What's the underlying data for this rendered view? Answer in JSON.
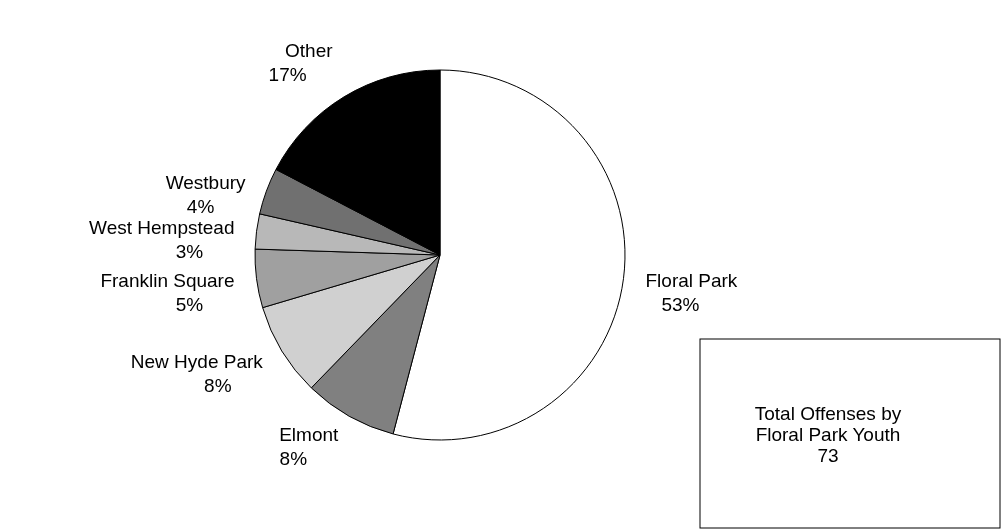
{
  "chart_data": {
    "type": "pie",
    "categories": [
      "Floral Park",
      "Elmont",
      "New Hyde Park",
      "Franklin Square",
      "West Hempstead",
      "Westbury",
      "Other"
    ],
    "values": [
      53,
      8,
      8,
      5,
      3,
      4,
      17
    ],
    "value_labels": [
      "53%",
      "8%",
      "8%",
      "5%",
      "3%",
      "4%",
      "17%"
    ],
    "colors": [
      "#ffffff",
      "#808080",
      "#d0d0d0",
      "#a0a0a0",
      "#b8b8b8",
      "#707070",
      "#000000"
    ],
    "annotations": [
      "Total Offenses by\nFloral Park Youth\n73"
    ]
  }
}
